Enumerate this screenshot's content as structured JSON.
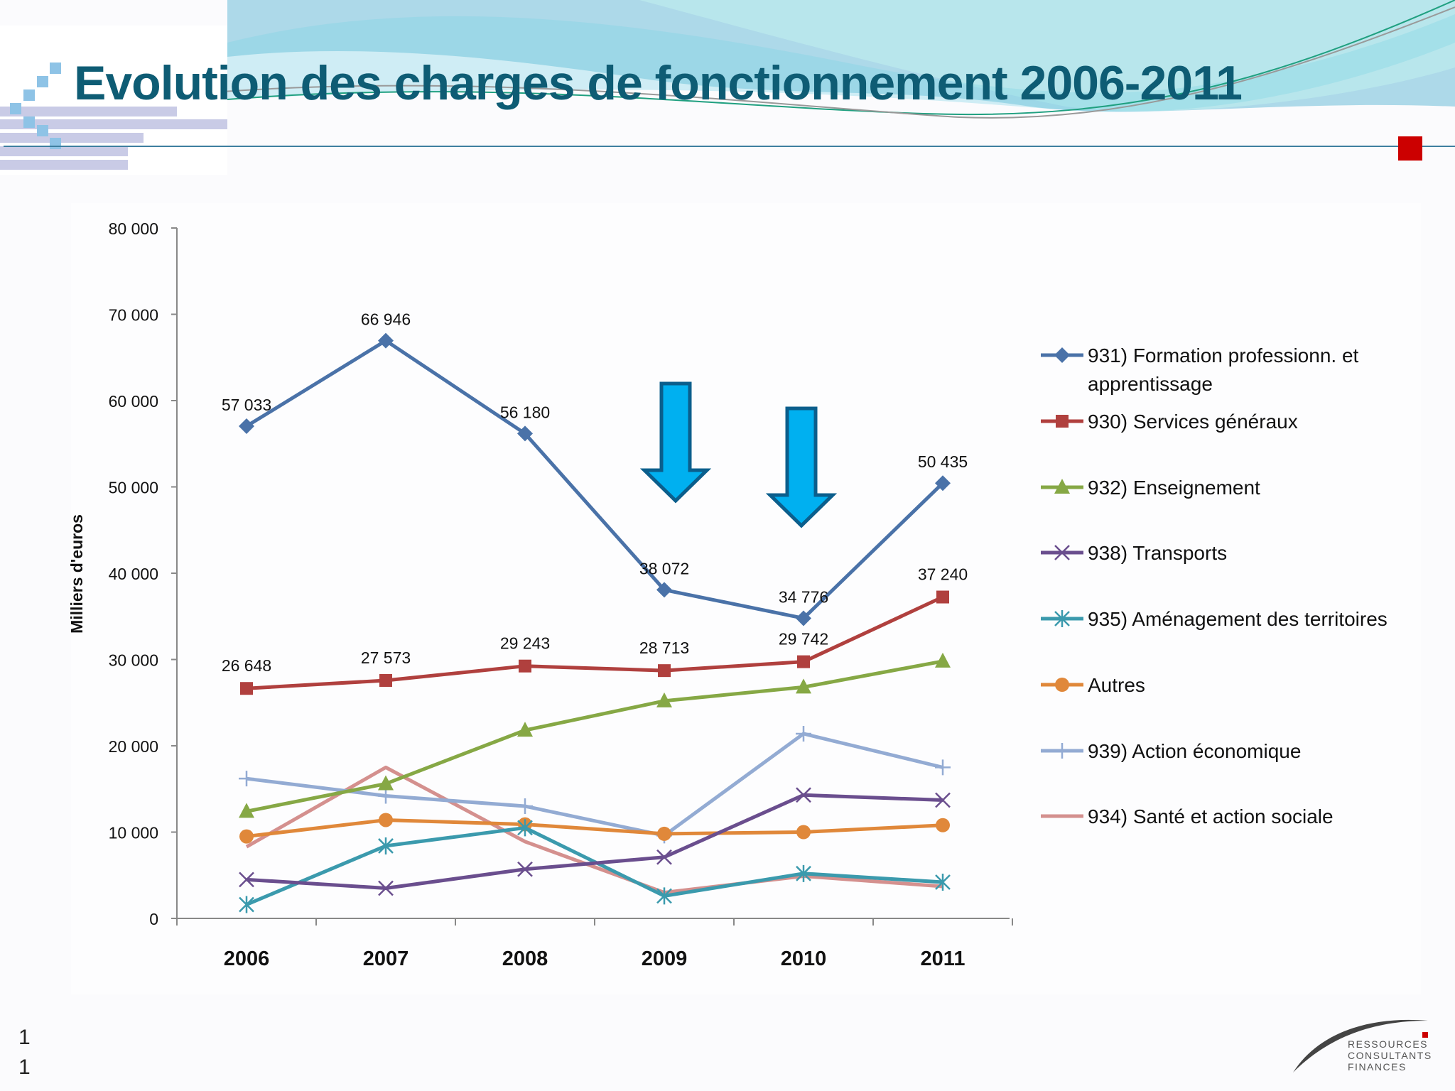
{
  "slide": {
    "title": "Evolution des charges de fonctionnement 2006-2011",
    "page_number": [
      "1",
      "1"
    ],
    "logo_text": [
      "RESSOURCES",
      "CONSULTANTS",
      "FINANCES"
    ],
    "accent_color": "#cc0000"
  },
  "chart_data": {
    "type": "line",
    "title": "",
    "xlabel": "",
    "ylabel": "Milliers d'euros",
    "ylim": [
      0,
      80000
    ],
    "yticks": [
      "0",
      "10 000",
      "20 000",
      "30 000",
      "40 000",
      "50 000",
      "60 000",
      "70 000",
      "80 000"
    ],
    "categories": [
      "2006",
      "2007",
      "2008",
      "2009",
      "2010",
      "2011"
    ],
    "legend_position": "right",
    "grid": false,
    "series": [
      {
        "name": "931) Formation professionn. et apprentissage",
        "color": "#4a72a8",
        "marker": "diamond",
        "values": [
          57033,
          66946,
          56180,
          38072,
          34776,
          50435
        ],
        "labels": [
          "57 033",
          "66 946",
          "56 180",
          "38 072",
          "34 776",
          "50 435"
        ]
      },
      {
        "name": "930) Services généraux",
        "color": "#b0403e",
        "marker": "square",
        "values": [
          26648,
          27573,
          29243,
          28713,
          29742,
          37240
        ],
        "labels": [
          "26 648",
          "27 573",
          "29 243",
          "28 713",
          "29 742",
          "37 240"
        ]
      },
      {
        "name": "932) Enseignement",
        "color": "#86a845",
        "marker": "triangle",
        "values": [
          12400,
          15600,
          21800,
          25200,
          26800,
          29800
        ]
      },
      {
        "name": "938) Transports",
        "color": "#6a4e8e",
        "marker": "x",
        "values": [
          4500,
          3500,
          5700,
          7100,
          14300,
          13700
        ]
      },
      {
        "name": "935) Aménagement des territoires",
        "color": "#3b9aad",
        "marker": "star",
        "values": [
          1600,
          8400,
          10500,
          2600,
          5200,
          4200
        ]
      },
      {
        "name": "Autres",
        "color": "#e0883a",
        "marker": "circle",
        "values": [
          9500,
          11400,
          10900,
          9800,
          10000,
          10800
        ]
      },
      {
        "name": "939) Action économique",
        "color": "#93abd3",
        "marker": "plus",
        "values": [
          16200,
          14200,
          13000,
          9600,
          21400,
          17500
        ]
      },
      {
        "name": "934) Santé et action sociale",
        "color": "#d4908e",
        "marker": "none",
        "values": [
          8300,
          17500,
          8900,
          3000,
          4900,
          3700
        ]
      }
    ],
    "annotations": [
      {
        "type": "down-arrow",
        "category": "2009",
        "color": "#00b0f0"
      },
      {
        "type": "down-arrow",
        "category": "2010",
        "color": "#00b0f0"
      }
    ]
  }
}
